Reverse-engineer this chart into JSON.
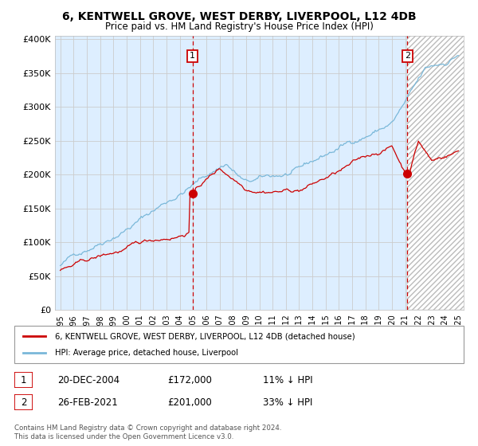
{
  "title_line1": "6, KENTWELL GROVE, WEST DERBY, LIVERPOOL, L12 4DB",
  "title_line2": "Price paid vs. HM Land Registry's House Price Index (HPI)",
  "x_start_year": 1995,
  "x_end_year": 2025,
  "ylim": [
    0,
    400000
  ],
  "yticks": [
    0,
    50000,
    100000,
    150000,
    200000,
    250000,
    300000,
    350000,
    400000
  ],
  "ytick_labels": [
    "£0",
    "£50K",
    "£100K",
    "£150K",
    "£200K",
    "£250K",
    "£300K",
    "£350K",
    "£400K"
  ],
  "sale1_date": "20-DEC-2004",
  "sale1_price": 172000,
  "sale1_price_str": "£172,000",
  "sale1_label": "1",
  "sale1_year": 2004.97,
  "sale1_pct": "11% ↓ HPI",
  "sale2_date": "26-FEB-2021",
  "sale2_price": 201000,
  "sale2_price_str": "£201,000",
  "sale2_label": "2",
  "sale2_year": 2021.15,
  "sale2_pct": "33% ↓ HPI",
  "legend_line1": "6, KENTWELL GROVE, WEST DERBY, LIVERPOOL, L12 4DB (detached house)",
  "legend_line2": "HPI: Average price, detached house, Liverpool",
  "footer_line1": "Contains HM Land Registry data © Crown copyright and database right 2024.",
  "footer_line2": "This data is licensed under the Open Government Licence v3.0.",
  "hpi_color": "#7ab8d9",
  "price_color": "#cc0000",
  "bg_plot_color": "#ddeeff",
  "hatch_color": "#bbbbbb",
  "grid_color": "#cccccc",
  "sale_dot_color": "#cc0000",
  "dashed_line_color": "#cc0000",
  "sale_dot_size": 7
}
